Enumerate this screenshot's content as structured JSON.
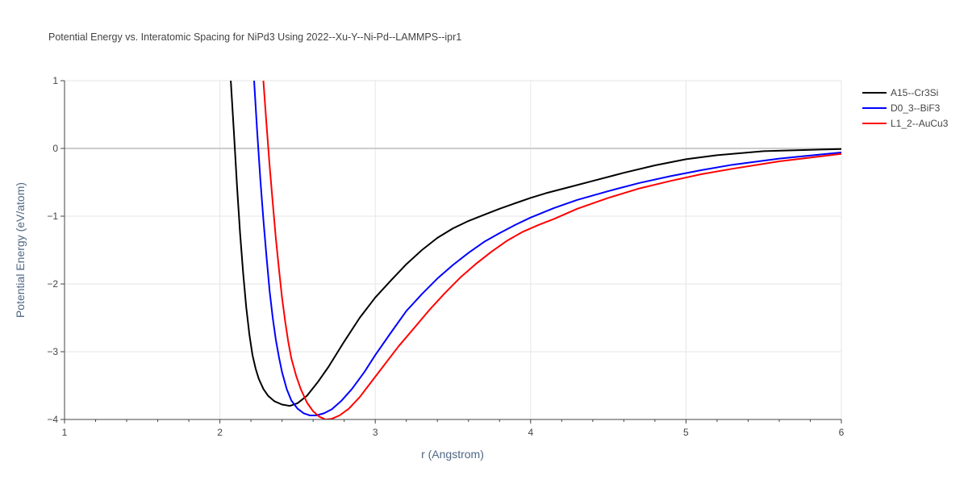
{
  "chart_data": {
    "type": "line",
    "title": "Potential Energy vs. Interatomic Spacing for NiPd3 Using 2022--Xu-Y--Ni-Pd--LAMMPS--ipr1",
    "xlabel": "r (Angstrom)",
    "ylabel": "Potential Energy (eV/atom)",
    "xlim": [
      1,
      6
    ],
    "ylim": [
      -4,
      1
    ],
    "xticks": [
      1,
      2,
      3,
      4,
      5,
      6
    ],
    "xtick_labels": [
      "1",
      "2",
      "3",
      "4",
      "5",
      "6"
    ],
    "yticks": [
      1,
      0,
      -1,
      -2,
      -3,
      -4
    ],
    "ytick_labels": [
      "1",
      "0",
      "−1",
      "−2",
      "−3",
      "−4"
    ],
    "grid": true,
    "legend_position": "top-right",
    "series": [
      {
        "name": "A15--Cr3Si",
        "color": "#000000",
        "x": [
          2.07,
          2.09,
          2.11,
          2.13,
          2.15,
          2.17,
          2.19,
          2.21,
          2.23,
          2.25,
          2.28,
          2.31,
          2.35,
          2.4,
          2.45,
          2.5,
          2.56,
          2.63,
          2.7,
          2.8,
          2.9,
          3.0,
          3.1,
          3.2,
          3.3,
          3.4,
          3.5,
          3.6,
          3.7,
          3.8,
          3.9,
          4.0,
          4.1,
          4.25,
          4.4,
          4.6,
          4.8,
          5.0,
          5.2,
          5.5,
          5.8,
          6.0
        ],
        "y": [
          1.0,
          0.25,
          -0.55,
          -1.25,
          -1.85,
          -2.35,
          -2.75,
          -3.05,
          -3.25,
          -3.4,
          -3.55,
          -3.65,
          -3.73,
          -3.78,
          -3.8,
          -3.76,
          -3.65,
          -3.45,
          -3.22,
          -2.85,
          -2.5,
          -2.2,
          -1.95,
          -1.71,
          -1.5,
          -1.32,
          -1.18,
          -1.07,
          -0.98,
          -0.89,
          -0.81,
          -0.73,
          -0.66,
          -0.57,
          -0.48,
          -0.36,
          -0.25,
          -0.16,
          -0.1,
          -0.04,
          -0.02,
          -0.01
        ]
      },
      {
        "name": "D0_3--BiF3",
        "color": "#0000ff",
        "x": [
          2.22,
          2.24,
          2.26,
          2.28,
          2.3,
          2.32,
          2.34,
          2.36,
          2.38,
          2.4,
          2.43,
          2.46,
          2.5,
          2.54,
          2.58,
          2.62,
          2.67,
          2.72,
          2.78,
          2.85,
          2.93,
          3.0,
          3.1,
          3.2,
          3.3,
          3.4,
          3.5,
          3.6,
          3.7,
          3.8,
          3.9,
          4.0,
          4.15,
          4.3,
          4.5,
          4.7,
          4.9,
          5.1,
          5.3,
          5.6,
          6.0
        ],
        "y": [
          1.0,
          0.25,
          -0.45,
          -1.05,
          -1.6,
          -2.1,
          -2.5,
          -2.82,
          -3.08,
          -3.3,
          -3.55,
          -3.72,
          -3.84,
          -3.91,
          -3.94,
          -3.94,
          -3.91,
          -3.85,
          -3.73,
          -3.55,
          -3.3,
          -3.05,
          -2.72,
          -2.4,
          -2.15,
          -1.92,
          -1.72,
          -1.54,
          -1.38,
          -1.25,
          -1.13,
          -1.02,
          -0.88,
          -0.76,
          -0.63,
          -0.51,
          -0.41,
          -0.32,
          -0.24,
          -0.15,
          -0.06
        ]
      },
      {
        "name": "L1_2--AuCu3",
        "color": "#ff0000",
        "x": [
          2.28,
          2.3,
          2.32,
          2.34,
          2.36,
          2.38,
          2.4,
          2.42,
          2.44,
          2.46,
          2.49,
          2.52,
          2.56,
          2.6,
          2.64,
          2.68,
          2.72,
          2.77,
          2.83,
          2.9,
          2.97,
          3.05,
          3.15,
          3.25,
          3.35,
          3.45,
          3.55,
          3.65,
          3.75,
          3.85,
          3.95,
          4.05,
          4.15,
          4.3,
          4.5,
          4.7,
          4.9,
          5.1,
          5.3,
          5.6,
          6.0
        ],
        "y": [
          1.0,
          0.35,
          -0.25,
          -0.8,
          -1.32,
          -1.78,
          -2.2,
          -2.55,
          -2.85,
          -3.1,
          -3.35,
          -3.55,
          -3.75,
          -3.88,
          -3.96,
          -4.0,
          -3.99,
          -3.94,
          -3.84,
          -3.67,
          -3.46,
          -3.22,
          -2.92,
          -2.65,
          -2.38,
          -2.13,
          -1.9,
          -1.7,
          -1.52,
          -1.36,
          -1.23,
          -1.13,
          -1.04,
          -0.89,
          -0.73,
          -0.59,
          -0.48,
          -0.38,
          -0.3,
          -0.19,
          -0.08
        ]
      }
    ]
  }
}
